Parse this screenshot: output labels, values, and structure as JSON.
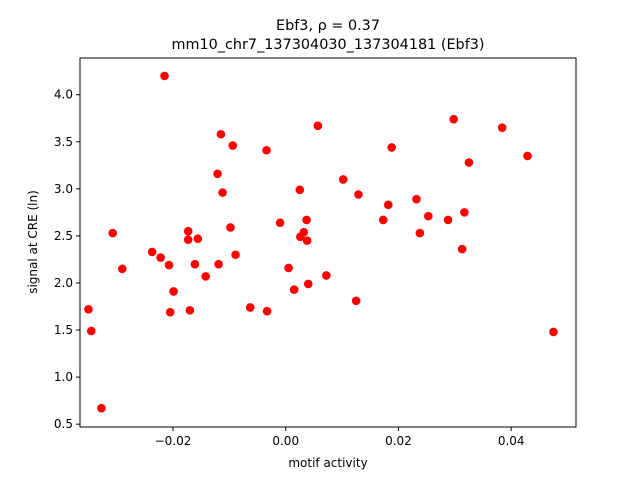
{
  "chart_data": {
    "type": "scatter",
    "title_line1": "Ebf3, ρ = 0.37",
    "title_line2": "mm10_chr7_137304030_137304181 (Ebf3)",
    "xlabel": "motif activity",
    "ylabel": "signal at CRE (ln)",
    "xlim": [
      -0.0365,
      0.0515
    ],
    "ylim": [
      0.47,
      4.39
    ],
    "xticks": [
      -0.02,
      0.0,
      0.02,
      0.04
    ],
    "xtick_labels": [
      "−0.02",
      "0.00",
      "0.02",
      "0.04"
    ],
    "yticks": [
      0.5,
      1.0,
      1.5,
      2.0,
      2.5,
      3.0,
      3.5,
      4.0
    ],
    "ytick_labels": [
      "0.5",
      "1.0",
      "1.5",
      "2.0",
      "2.5",
      "3.0",
      "3.5",
      "4.0"
    ],
    "grid": false,
    "marker_color": "#ff0000",
    "points": [
      {
        "x": -0.035,
        "y": 1.72
      },
      {
        "x": -0.0345,
        "y": 1.49
      },
      {
        "x": -0.0327,
        "y": 0.67
      },
      {
        "x": -0.0307,
        "y": 2.53
      },
      {
        "x": -0.029,
        "y": 2.15
      },
      {
        "x": -0.0237,
        "y": 2.33
      },
      {
        "x": -0.0222,
        "y": 2.27
      },
      {
        "x": -0.0215,
        "y": 4.2
      },
      {
        "x": -0.0207,
        "y": 2.19
      },
      {
        "x": -0.0205,
        "y": 1.69
      },
      {
        "x": -0.0199,
        "y": 1.91
      },
      {
        "x": -0.0173,
        "y": 2.55
      },
      {
        "x": -0.0173,
        "y": 2.46
      },
      {
        "x": -0.017,
        "y": 1.71
      },
      {
        "x": -0.0161,
        "y": 2.2
      },
      {
        "x": -0.0156,
        "y": 2.47
      },
      {
        "x": -0.0142,
        "y": 2.07
      },
      {
        "x": -0.0121,
        "y": 3.16
      },
      {
        "x": -0.0119,
        "y": 2.2
      },
      {
        "x": -0.0115,
        "y": 3.58
      },
      {
        "x": -0.0112,
        "y": 2.96
      },
      {
        "x": -0.0098,
        "y": 2.59
      },
      {
        "x": -0.0094,
        "y": 3.46
      },
      {
        "x": -0.0089,
        "y": 2.3
      },
      {
        "x": -0.0063,
        "y": 1.74
      },
      {
        "x": -0.0034,
        "y": 3.41
      },
      {
        "x": -0.0033,
        "y": 1.7
      },
      {
        "x": -0.001,
        "y": 2.64
      },
      {
        "x": 0.0005,
        "y": 2.16
      },
      {
        "x": 0.0015,
        "y": 1.93
      },
      {
        "x": 0.0025,
        "y": 2.99
      },
      {
        "x": 0.0026,
        "y": 2.49
      },
      {
        "x": 0.0032,
        "y": 2.54
      },
      {
        "x": 0.0037,
        "y": 2.67
      },
      {
        "x": 0.0038,
        "y": 2.45
      },
      {
        "x": 0.004,
        "y": 1.99
      },
      {
        "x": 0.0057,
        "y": 3.67
      },
      {
        "x": 0.0072,
        "y": 2.08
      },
      {
        "x": 0.0102,
        "y": 3.1
      },
      {
        "x": 0.0125,
        "y": 1.81
      },
      {
        "x": 0.0129,
        "y": 2.94
      },
      {
        "x": 0.0173,
        "y": 2.67
      },
      {
        "x": 0.0182,
        "y": 2.83
      },
      {
        "x": 0.0188,
        "y": 3.44
      },
      {
        "x": 0.0232,
        "y": 2.89
      },
      {
        "x": 0.0238,
        "y": 2.53
      },
      {
        "x": 0.0253,
        "y": 2.71
      },
      {
        "x": 0.0288,
        "y": 2.67
      },
      {
        "x": 0.0298,
        "y": 3.74
      },
      {
        "x": 0.0313,
        "y": 2.36
      },
      {
        "x": 0.0317,
        "y": 2.75
      },
      {
        "x": 0.0325,
        "y": 3.28
      },
      {
        "x": 0.0384,
        "y": 3.65
      },
      {
        "x": 0.0429,
        "y": 3.35
      },
      {
        "x": 0.0475,
        "y": 1.48
      }
    ]
  }
}
